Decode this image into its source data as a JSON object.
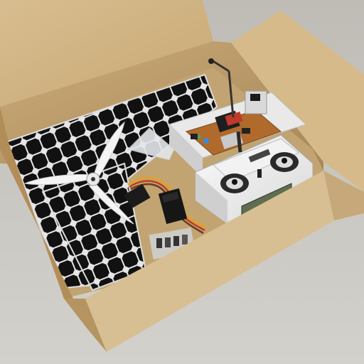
{
  "scene": {
    "subject": "open-cardboard-box-with-solar-drone-kit",
    "contents": [
      "solar-panel",
      "propeller",
      "servos",
      "circuit-board",
      "rc-transmitter",
      "connectors"
    ]
  },
  "colors": {
    "background": "#c9c7c2",
    "cardboard": "#d4b789",
    "cardboard_dark": "#b8965f",
    "solar_cell": "#121212",
    "solar_grid": "#e8e8e8",
    "pcb": "#b06a2c",
    "transmitter": "#eeeeee",
    "lcd": "#5f6e4e"
  }
}
